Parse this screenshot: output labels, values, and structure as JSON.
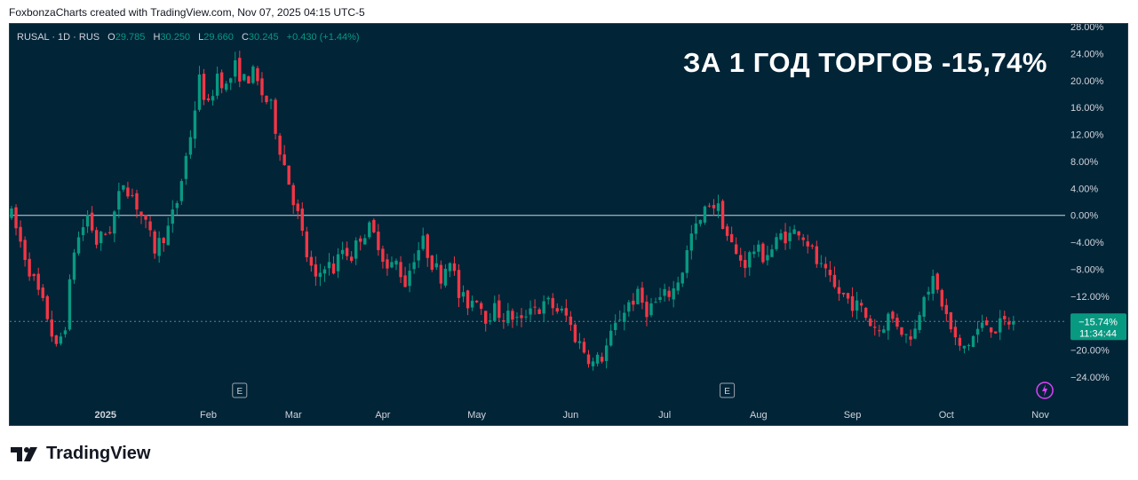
{
  "credit": "FoxbonzaCharts created with TradingView.com, Nov 07, 2025 04:15 UTC-5",
  "legend": {
    "symbol": "RUSAL · 1D · RUS",
    "o_label": "O",
    "o": "29.785",
    "h_label": "H",
    "h": "30.250",
    "l_label": "L",
    "l": "29.660",
    "c_label": "C",
    "c": "30.245",
    "change": "+0.430 (+1.44%)"
  },
  "headline": "ЗА 1 ГОД ТОРГОВ -15,74%",
  "price_badge": {
    "value": "−15.74%",
    "countdown": "11:34:44"
  },
  "event_markers": [
    "E",
    "E"
  ],
  "footer_brand": "TradingView",
  "colors": {
    "background": "#012437",
    "up": "#089981",
    "down": "#f23645",
    "baseline": "#d1d4dc",
    "badge": "#089981",
    "event_icon": "#e040fb"
  },
  "chart_data": {
    "type": "candlestick",
    "y_scale": "percent change",
    "ylim": [
      -24,
      28
    ],
    "y_ticks": [
      "28.00%",
      "24.00%",
      "20.00%",
      "16.00%",
      "12.00%",
      "8.00%",
      "4.00%",
      "0.00%",
      "−4.00%",
      "−8.00%",
      "−12.00%",
      "−20.00%",
      "−24.00%"
    ],
    "y_tick_values": [
      28,
      24,
      20,
      16,
      12,
      8,
      4,
      0,
      -4,
      -8,
      -12,
      -20,
      -24
    ],
    "x_ticks": [
      "2025",
      "Feb",
      "Mar",
      "Apr",
      "May",
      "Jun",
      "Jul",
      "Aug",
      "Sep",
      "Oct",
      "Nov"
    ],
    "x_tick_days": [
      21,
      44,
      63,
      83,
      104,
      125,
      146,
      167,
      188,
      209,
      230
    ],
    "event_days": [
      51,
      160
    ],
    "lightning_day": 231,
    "baseline": 0,
    "last_value": -15.74,
    "total_days": 234,
    "path": [
      [
        0,
        0
      ],
      [
        4,
        -8
      ],
      [
        8,
        -15
      ],
      [
        10,
        -20
      ],
      [
        12,
        -16
      ],
      [
        14,
        -5
      ],
      [
        17,
        0
      ],
      [
        19,
        -4
      ],
      [
        22,
        -2
      ],
      [
        25,
        5
      ],
      [
        27,
        3
      ],
      [
        29,
        0
      ],
      [
        32,
        -5
      ],
      [
        35,
        -2
      ],
      [
        37,
        2
      ],
      [
        40,
        12
      ],
      [
        42,
        20
      ],
      [
        44,
        16
      ],
      [
        46,
        21
      ],
      [
        48,
        19
      ],
      [
        50,
        22
      ],
      [
        52,
        20
      ],
      [
        54,
        21
      ],
      [
        56,
        18
      ],
      [
        58,
        16
      ],
      [
        60,
        10
      ],
      [
        62,
        5
      ],
      [
        64,
        0
      ],
      [
        66,
        -6
      ],
      [
        68,
        -10
      ],
      [
        70,
        -7
      ],
      [
        72,
        -8
      ],
      [
        74,
        -5
      ],
      [
        76,
        -6
      ],
      [
        78,
        -3
      ],
      [
        80,
        -2
      ],
      [
        82,
        -4
      ],
      [
        84,
        -8
      ],
      [
        86,
        -7
      ],
      [
        88,
        -10
      ],
      [
        90,
        -6
      ],
      [
        92,
        -4
      ],
      [
        94,
        -7
      ],
      [
        96,
        -9
      ],
      [
        98,
        -6
      ],
      [
        100,
        -12
      ],
      [
        102,
        -13
      ],
      [
        104,
        -12
      ],
      [
        106,
        -15
      ],
      [
        108,
        -14
      ],
      [
        110,
        -15
      ],
      [
        112,
        -15
      ],
      [
        114,
        -16
      ],
      [
        116,
        -13
      ],
      [
        118,
        -14
      ],
      [
        120,
        -13
      ],
      [
        122,
        -14
      ],
      [
        124,
        -15
      ],
      [
        126,
        -18
      ],
      [
        128,
        -20
      ],
      [
        130,
        -22
      ],
      [
        132,
        -21
      ],
      [
        134,
        -18
      ],
      [
        136,
        -15
      ],
      [
        138,
        -13
      ],
      [
        140,
        -12
      ],
      [
        142,
        -14
      ],
      [
        144,
        -13
      ],
      [
        146,
        -12
      ],
      [
        148,
        -11
      ],
      [
        150,
        -8
      ],
      [
        152,
        -3
      ],
      [
        154,
        -1
      ],
      [
        156,
        2
      ],
      [
        158,
        1
      ],
      [
        160,
        -3
      ],
      [
        162,
        -6
      ],
      [
        164,
        -7
      ],
      [
        166,
        -5
      ],
      [
        168,
        -6
      ],
      [
        170,
        -5
      ],
      [
        172,
        -3
      ],
      [
        174,
        -3
      ],
      [
        176,
        -2
      ],
      [
        178,
        -4
      ],
      [
        180,
        -7
      ],
      [
        182,
        -9
      ],
      [
        184,
        -11
      ],
      [
        186,
        -12
      ],
      [
        188,
        -13
      ],
      [
        190,
        -14
      ],
      [
        192,
        -16
      ],
      [
        194,
        -17
      ],
      [
        196,
        -15
      ],
      [
        198,
        -16
      ],
      [
        200,
        -18
      ],
      [
        202,
        -17
      ],
      [
        204,
        -11
      ],
      [
        206,
        -10
      ],
      [
        208,
        -13
      ],
      [
        210,
        -17
      ],
      [
        212,
        -20
      ],
      [
        214,
        -19
      ],
      [
        216,
        -17
      ],
      [
        218,
        -16
      ],
      [
        220,
        -16.8
      ],
      [
        222,
        -16
      ],
      [
        224,
        -15.74
      ]
    ]
  }
}
